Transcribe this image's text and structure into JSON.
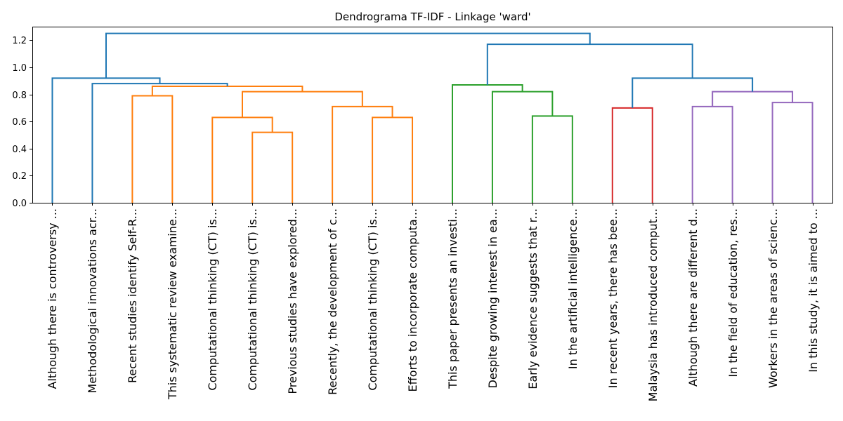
{
  "chart_data": {
    "type": "dendrogram",
    "title": "Dendrograma TF-IDF - Linkage 'ward'",
    "xlabel": "",
    "ylabel": "",
    "ylim": [
      0,
      1.3
    ],
    "yticks": [
      0.0,
      0.2,
      0.4,
      0.6,
      0.8,
      1.0,
      1.2
    ],
    "ytick_labels": [
      "0.0",
      "0.2",
      "0.4",
      "0.6",
      "0.8",
      "1.0",
      "1.2"
    ],
    "grid": false,
    "leaves": [
      "Although there is controversy ...",
      "Methodological innovations acr...",
      "Recent studies identify Self-R...",
      "This systematic review examine...",
      "Computational thinking (CT) is...",
      "Computational thinking (CT) is...",
      "Previous studies have explored...",
      "Recently,  the development of c...",
      "Computational thinking (CT) is...",
      "Efforts to incorporate computa...",
      "This paper presents an investi...",
      "Despite growing interest in ea...",
      "Early evidence suggests that r...",
      "In the artificial intelligence...",
      "In recent years, there has bee...",
      "Malaysia has introduced comput...",
      "Although there are different d...",
      "In the field of education, res...",
      "Workers in the areas of scienc...",
      "In this study, it is aimed to ..."
    ],
    "colors": {
      "above_threshold": "#1f77b4",
      "cluster_1": "#ff7f0e",
      "cluster_2": "#2ca02c",
      "cluster_3": "#d62728",
      "cluster_4": "#9467bd"
    },
    "merges": [
      {
        "left": 5,
        "right": 6,
        "height": 0.52,
        "color": "cluster_1"
      },
      {
        "left": 8,
        "right": 9,
        "height": 0.63,
        "color": "cluster_1"
      },
      {
        "left": 4,
        "right": "m0",
        "height": 0.63,
        "color": "cluster_1"
      },
      {
        "left": 14,
        "right": 15,
        "height": 0.7,
        "color": "cluster_3"
      },
      {
        "left": 7,
        "right": "m1",
        "height": 0.71,
        "color": "cluster_1"
      },
      {
        "left": 16,
        "right": 17,
        "height": 0.71,
        "color": "cluster_4"
      },
      {
        "left": 18,
        "right": 19,
        "height": 0.74,
        "color": "cluster_4"
      },
      {
        "left": 2,
        "right": 3,
        "height": 0.79,
        "color": "cluster_1"
      },
      {
        "left": "m5",
        "right": "m6",
        "height": 0.82,
        "color": "cluster_4"
      },
      {
        "left": "m2",
        "right": "m4",
        "height": 0.82,
        "color": "cluster_1"
      },
      {
        "left": 12,
        "right": 13,
        "height": 0.64,
        "color": "cluster_2"
      },
      {
        "left": 11,
        "right": "m10",
        "height": 0.82,
        "color": "cluster_2"
      },
      {
        "left": 10,
        "right": "m11",
        "height": 0.87,
        "color": "cluster_2"
      },
      {
        "left": "m7",
        "right": "m9",
        "height": 0.86,
        "color": "cluster_1"
      },
      {
        "left": 1,
        "right": "m13",
        "height": 0.88,
        "color": "above_threshold"
      },
      {
        "left": 0,
        "right": "m14",
        "height": 0.92,
        "color": "above_threshold"
      },
      {
        "left": "m3",
        "right": "m8",
        "height": 0.92,
        "color": "above_threshold"
      },
      {
        "left": "m12",
        "right": "m16",
        "height": 1.17,
        "color": "above_threshold"
      },
      {
        "left": "m15",
        "right": "m17",
        "height": 1.25,
        "color": "above_threshold"
      }
    ]
  }
}
